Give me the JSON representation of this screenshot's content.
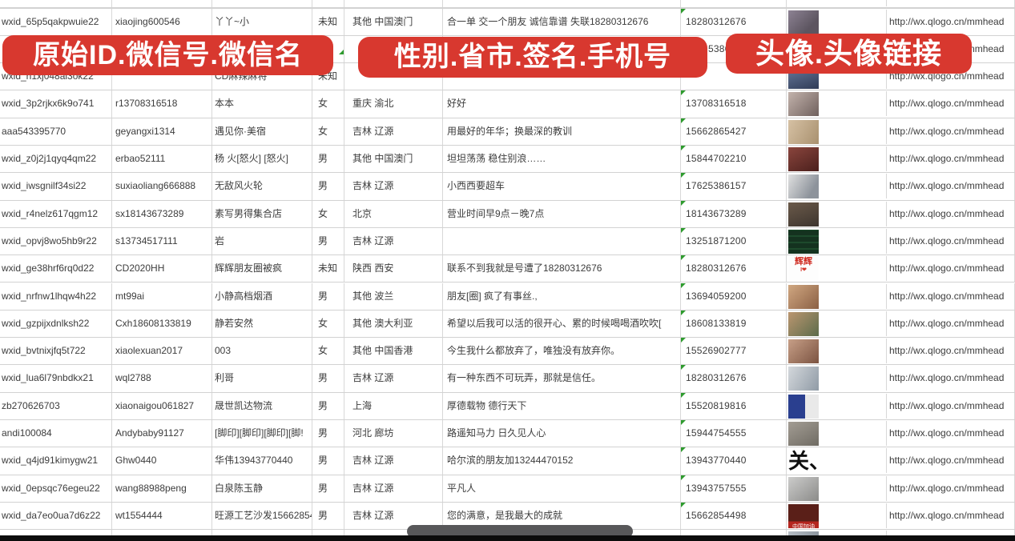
{
  "banners": {
    "original_id": "原始ID.微信号.微信名",
    "profile_fields": "性别.省市.签名.手机号",
    "avatar_fields": "头像.头像链接"
  },
  "accent_color": "#d8382f",
  "error_indicator_color": "#2e9b2e",
  "rows": [
    {
      "wxid": "",
      "weixin_id": "",
      "name": "",
      "gender": "",
      "region": "",
      "signature": "",
      "phone": "",
      "avatar": "",
      "avatar_text": "",
      "link": ""
    },
    {
      "wxid": "wxid_65p5qakpwuie22",
      "weixin_id": "xiaojing600546",
      "name": "丫丫~小",
      "gender": "未知",
      "region": "其他 中国澳门",
      "signature": "合一单 交一个朋友 诚信靠谱 失联18280312676",
      "phone": "18280312676",
      "avatar": "woman-selfie",
      "avatar_text": "",
      "link": "http://wx.qlogo.cn/mmhead"
    },
    {
      "wxid": "",
      "weixin_id": "",
      "name": "",
      "gender": "",
      "region": "",
      "signature": "",
      "phone": "5386",
      "avatar": "",
      "avatar_text": "",
      "link": "http://wx.qlogo.cn/mmhead"
    },
    {
      "wxid": "wxid_h1xj048al3ok22",
      "weixin_id": "",
      "name": "CD麻辣麻将",
      "gender": "未知",
      "region": "",
      "signature": "",
      "phone": "",
      "avatar": "woman-portrait",
      "avatar_text": "",
      "link": "http://wx.qlogo.cn/mmhead"
    },
    {
      "wxid": "wxid_3p2rjkx6k9o741",
      "weixin_id": "r13708316518",
      "name": "本本",
      "gender": "女",
      "region": "重庆 渝北",
      "signature": "好好",
      "phone": "13708316518",
      "avatar": "woman-long-hair",
      "avatar_text": "",
      "link": "http://wx.qlogo.cn/mmhead"
    },
    {
      "wxid": "aaa543395770",
      "weixin_id": "geyangxi1314",
      "name": "遇见你·美宿",
      "gender": "女",
      "region": "吉林 辽源",
      "signature": "用最好的年华；换最深的教训",
      "phone": "15662865427",
      "avatar": "sepia-photo",
      "avatar_text": "",
      "link": "http://wx.qlogo.cn/mmhead"
    },
    {
      "wxid": "wxid_z0j2j1qyq4qm22",
      "weixin_id": "erbao52111",
      "name": "杨 火[怒火] [怒火]",
      "gender": "男",
      "region": "其他 中国澳门",
      "signature": "坦坦荡荡 稳住别浪……",
      "phone": "15844702210",
      "avatar": "group-dinner-photo",
      "avatar_text": "",
      "link": "http://wx.qlogo.cn/mmhead"
    },
    {
      "wxid": "wxid_iwsgnilf34si22",
      "weixin_id": "suxiaoliang666888",
      "name": "无敌风火轮",
      "gender": "男",
      "region": "吉林 辽源",
      "signature": "小西西要超车",
      "phone": "17625386157",
      "avatar": "person-in-car",
      "avatar_text": "",
      "link": "http://wx.qlogo.cn/mmhead"
    },
    {
      "wxid": "wxid_r4nelz617qgm12",
      "weixin_id": "sx18143673289",
      "name": "素写男得集合店",
      "gender": "女",
      "region": "北京",
      "signature": "营业时间早9点－晚7点",
      "phone": "18143673289",
      "avatar": "storefront-photo",
      "avatar_text": "",
      "link": "http://wx.qlogo.cn/mmhead"
    },
    {
      "wxid": "wxid_opvj8wo5hb9r22",
      "weixin_id": "s13734517111",
      "name": "岩",
      "gender": "男",
      "region": "吉林 辽源",
      "signature": "",
      "phone": "13251871200",
      "avatar": "dark-green-text-image",
      "avatar_text": "",
      "link": "http://wx.qlogo.cn/mmhead"
    },
    {
      "wxid": "wxid_ge38hrf6rq0d22",
      "weixin_id": "CD2020HH",
      "name": "辉辉朋友圈被疯",
      "gender": "未知",
      "region": "陕西 西安",
      "signature": "联系不到我就是号遭了18280312676",
      "phone": "18280312676",
      "avatar": "white-red-text",
      "avatar_text": "辉辉",
      "link": "http://wx.qlogo.cn/mmhead"
    },
    {
      "wxid": "wxid_nrfnw1lhqw4h22",
      "weixin_id": "mt99ai",
      "name": "小静高档烟酒",
      "gender": "男",
      "region": "其他 波兰",
      "signature": "朋友[圈] 疯了有事丝.,",
      "phone": "13694059200",
      "avatar": "woman-sunglasses",
      "avatar_text": "",
      "link": "http://wx.qlogo.cn/mmhead"
    },
    {
      "wxid": "wxid_gzpijxdnlksh22",
      "weixin_id": "Cxh18608133819",
      "name": "静若安然",
      "gender": "女",
      "region": "其他 澳大利亚",
      "signature": "希望以后我可以活的很开心、累的时候喝喝酒吹吹[",
      "phone": "18608133819",
      "avatar": "woman-outdoor",
      "avatar_text": "",
      "link": "http://wx.qlogo.cn/mmhead"
    },
    {
      "wxid": "wxid_bvtnixjfq5t722",
      "weixin_id": "xiaolexuan2017",
      "name": "003",
      "gender": "女",
      "region": "其他 中国香港",
      "signature": "今生我什么都放弃了，唯独没有放弃你。",
      "phone": "15526902777",
      "avatar": "woman-selfie",
      "avatar_text": "",
      "link": "http://wx.qlogo.cn/mmhead"
    },
    {
      "wxid": "wxid_lua6l79nbdkx21",
      "weixin_id": "wql2788",
      "name": "利哥",
      "gender": "男",
      "region": "吉林 辽源",
      "signature": "有一种东西不可玩弄，那就是信任。",
      "phone": "18280312676",
      "avatar": "man-winter-coat",
      "avatar_text": "",
      "link": "http://wx.qlogo.cn/mmhead"
    },
    {
      "wxid": "zb270626703",
      "weixin_id": "xiaonaigou061827",
      "name": "晟世凯达物流",
      "gender": "男",
      "region": "上海",
      "signature": "厚德载物 德行天下",
      "phone": "15520819816",
      "avatar": "blue-qr-code",
      "avatar_text": "",
      "link": "http://wx.qlogo.cn/mmhead"
    },
    {
      "wxid": "andi100084",
      "weixin_id": "Andybaby91127",
      "name": "[脚印][脚印][脚印][脚!",
      "gender": "男",
      "region": "河北 廊坊",
      "signature": "路遥知马力 日久见人心",
      "phone": "15944754555",
      "avatar": "stone-statues",
      "avatar_text": "",
      "link": "http://wx.qlogo.cn/mmhead"
    },
    {
      "wxid": "wxid_q4jd91kimygw21",
      "weixin_id": "Ghw0440",
      "name": "华伟13943770440",
      "gender": "男",
      "region": "吉林 辽源",
      "signature": "哈尔滨的朋友加13244470152",
      "phone": "13943770440",
      "avatar": "calligraphy-character",
      "avatar_text": "关、",
      "link": "http://wx.qlogo.cn/mmhead"
    },
    {
      "wxid": "wxid_0epsqc76egeu22",
      "weixin_id": "wang88988peng",
      "name": "白泉陈玉静",
      "gender": "男",
      "region": "吉林 辽源",
      "signature": "平凡人",
      "phone": "13943757555",
      "avatar": "person-grey",
      "avatar_text": "",
      "link": "http://wx.qlogo.cn/mmhead"
    },
    {
      "wxid": "wxid_da7eo0ua7d6z22",
      "weixin_id": "wt1554444",
      "name": "旺源工艺沙发15662854",
      "gender": "男",
      "region": "吉林 辽源",
      "signature": "您的满意，是我最大的成就",
      "phone": "15662854498",
      "avatar": "red-banner-photo",
      "avatar_text": "中国加油",
      "link": "http://wx.qlogo.cn/mmhead"
    },
    {
      "wxid": "",
      "weixin_id": "",
      "name": "",
      "gender": "",
      "region": "",
      "signature": "",
      "phone": "",
      "avatar": "person-partial",
      "avatar_text": "",
      "link": ""
    }
  ]
}
